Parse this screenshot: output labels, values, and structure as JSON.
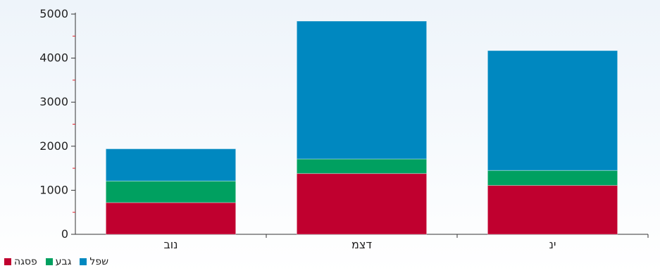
{
  "chart_data": {
    "type": "bar",
    "stacked": true,
    "categories": [
      "נוב",
      "דצמ",
      "ינ"
    ],
    "series": [
      {
        "name": "פסגה",
        "color": "#c0002f",
        "values": [
          720,
          1380,
          1110
        ]
      },
      {
        "name": "גבע",
        "color": "#00a060",
        "values": [
          490,
          330,
          340
        ]
      },
      {
        "name": "שפל",
        "color": "#0088c0",
        "values": [
          730,
          3130,
          2720
        ]
      }
    ],
    "ylim": [
      0,
      5000
    ],
    "yticks": [
      0,
      1000,
      2000,
      3000,
      4000,
      5000
    ],
    "legend_order": [
      "פסגה",
      "גבע",
      "שפל"
    ],
    "legend_position": "bottom-left"
  }
}
